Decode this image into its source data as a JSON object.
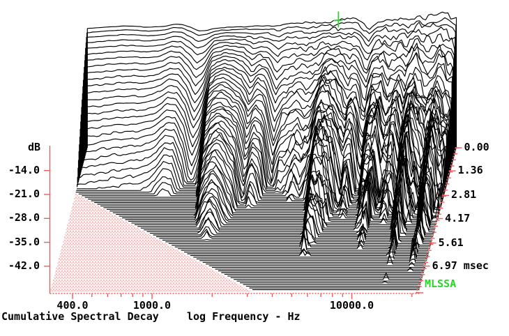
{
  "chart_data": {
    "type": "waterfall",
    "title": "Cumulative Spectral Decay",
    "xlabel": "log Frequency - Hz",
    "ylabel": "dB",
    "watermark": "MLSSA",
    "time_unit": "msec",
    "x_scale": "log",
    "grid": false,
    "y_range_db": [
      -50,
      0
    ],
    "freq_range_hz": [
      310,
      21800
    ],
    "x_major_ticks": [
      {
        "hz": 400,
        "label": "400.0"
      },
      {
        "hz": 1000,
        "label": "1000.0"
      },
      {
        "hz": 10000,
        "label": "10000.0"
      }
    ],
    "x_minor_ticks_hz": [
      300,
      500,
      600,
      700,
      800,
      900,
      2000,
      3000,
      4000,
      5000,
      6000,
      7000,
      8000,
      9000,
      20000
    ],
    "y_ticks": [
      {
        "db": -14,
        "label": "-14.0"
      },
      {
        "db": -21,
        "label": "-21.0"
      },
      {
        "db": -28,
        "label": "-28.0"
      },
      {
        "db": -35,
        "label": "-35.0"
      },
      {
        "db": -42,
        "label": "-42.0"
      }
    ],
    "time_ticks": [
      {
        "ms": 0.0,
        "label": "0.00"
      },
      {
        "ms": 1.36,
        "label": "1.36"
      },
      {
        "ms": 2.81,
        "label": "2.81"
      },
      {
        "ms": 4.17,
        "label": "4.17"
      },
      {
        "ms": 5.61,
        "label": "5.61"
      },
      {
        "ms": 6.97,
        "label": "6.97 msec"
      }
    ],
    "n_slices": 84,
    "slice_dt_ms": 0.1,
    "full_bandwidth_slices": 27,
    "series": {
      "freq_hz": [
        300,
        330,
        362,
        398,
        437,
        480,
        527,
        579,
        636,
        698,
        767,
        842,
        925,
        1016,
        1116,
        1226,
        1346,
        1478,
        1624,
        1783,
        1959,
        2151,
        2363,
        2595,
        2850,
        3130,
        3438,
        3776,
        4147,
        4555,
        5003,
        5494,
        6034,
        6627,
        7279,
        7994,
        8780,
        9644,
        10592,
        11633,
        12777,
        14033,
        15413,
        16928,
        18592,
        20420,
        21800
      ],
      "initial_db": [
        -15.2,
        -15.0,
        -14.8,
        -14.6,
        -14.5,
        -14.3,
        -14.4,
        -14.6,
        -14.7,
        -14.6,
        -14.4,
        -13.8,
        -13.9,
        -14.7,
        -15.8,
        -15.6,
        -15.0,
        -14.8,
        -14.7,
        -14.6,
        -14.5,
        -14.4,
        -14.3,
        -14.2,
        -14.0,
        -13.8,
        -13.6,
        -13.5,
        -13.3,
        -13.2,
        -13.3,
        -13.0,
        -12.0,
        -11.6,
        -13.0,
        -15.4,
        -13.5,
        -12.6,
        -12.2,
        -12.3,
        -12.6,
        -12.4,
        -11.4,
        -10.8,
        -11.2,
        -11.6,
        -11.9
      ],
      "decay_db_per_ms": [
        12,
        12,
        12,
        11.8,
        11.8,
        11.6,
        11.6,
        11.4,
        11.2,
        11.0,
        10.4,
        9.5,
        9.7,
        11.5,
        16,
        13,
        5.6,
        4.6,
        4.2,
        4.8,
        6,
        9,
        7,
        8,
        14,
        11,
        10,
        8.5,
        9,
        7,
        3.4,
        3.6,
        4.6,
        7.5,
        5,
        10,
        5,
        2.9,
        7,
        4.6,
        7,
        2.8,
        3.6,
        6.5,
        3.0,
        4.8,
        4.4
      ],
      "early_decay_db_per_ms": [
        0,
        0,
        0,
        0,
        0,
        0,
        0,
        0,
        0,
        0,
        0,
        0,
        0,
        0,
        0.4,
        0.4,
        0.4,
        0.4,
        0.4,
        0.5,
        0.6,
        0.8,
        0.9,
        1.1,
        1.5,
        1.9,
        2.3,
        2.6,
        3.0,
        3.4,
        3.8,
        4.1,
        4.5,
        4.9,
        5.3,
        5.6,
        6.0,
        6.4,
        6.8,
        7.1,
        7.5,
        7.9,
        8.3,
        9.0,
        9.8,
        10.5,
        10.5
      ],
      "roughness_db": [
        0.4,
        0.4,
        0.4,
        0.4,
        0.4,
        0.4,
        0.4,
        0.4,
        0.4,
        0.4,
        0.5,
        0.5,
        0.5,
        0.6,
        0.6,
        0.6,
        0.7,
        0.7,
        0.8,
        0.9,
        1.0,
        1.1,
        1.2,
        1.3,
        1.5,
        1.7,
        1.9,
        2.1,
        2.3,
        2.5,
        2.7,
        2.9,
        3.1,
        3.3,
        3.5,
        3.7,
        3.9,
        4.1,
        4.3,
        4.5,
        4.7,
        4.9,
        5.1,
        5.3,
        5.5,
        5.6,
        5.6
      ]
    },
    "cursor": {
      "freq_hz": 5600,
      "slice": 0
    },
    "colors": {
      "trace": "#000000",
      "axis": "#ee5d5d",
      "hatch": "#f29090",
      "cursor_green": "#2bd42b",
      "watermark_green": "#2bd42b",
      "background": "#ffffff",
      "text": "#000000"
    }
  }
}
